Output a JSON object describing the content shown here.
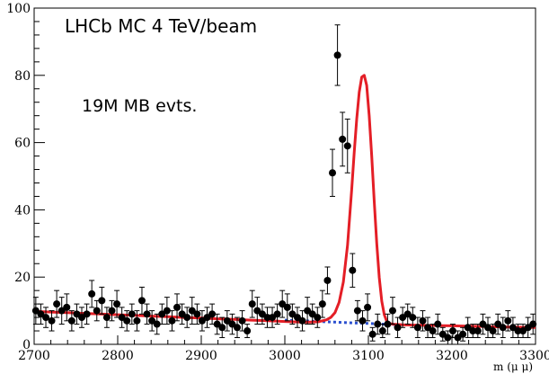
{
  "chart_data": {
    "type": "scatter",
    "xlabel": "m (μ μ)",
    "ylabel": "",
    "xlim": [
      2700,
      3300
    ],
    "ylim": [
      0,
      100
    ],
    "x_ticks": [
      2700,
      2800,
      2900,
      3000,
      3100,
      3200,
      3300
    ],
    "y_ticks": [
      0,
      20,
      40,
      60,
      80,
      100
    ],
    "grid": false,
    "annotations": [
      "LHCb MC 4 TeV/beam",
      "19M MB evts."
    ],
    "colors": {
      "fit": "#e41e26",
      "background": "#2a4fcf",
      "points": "#000000"
    },
    "series": [
      {
        "type": "errorbar",
        "x": [
          2702,
          2708,
          2714,
          2721,
          2727,
          2733,
          2739,
          2745,
          2751,
          2757,
          2763,
          2769,
          2775,
          2781,
          2787,
          2793,
          2799,
          2805,
          2811,
          2817,
          2823,
          2829,
          2835,
          2841,
          2847,
          2853,
          2859,
          2865,
          2871,
          2877,
          2883,
          2889,
          2895,
          2901,
          2907,
          2913,
          2919,
          2925,
          2931,
          2937,
          2943,
          2949,
          2955,
          2961,
          2967,
          2973,
          2979,
          2985,
          2991,
          2997,
          3003,
          3009,
          3015,
          3021,
          3027,
          3033,
          3039,
          3045,
          3051,
          3057,
          3063,
          3069,
          3075,
          3081,
          3087,
          3093,
          3099,
          3105,
          3111,
          3117,
          3123,
          3129,
          3135,
          3141,
          3147,
          3153,
          3159,
          3165,
          3171,
          3177,
          3183,
          3189,
          3195,
          3201,
          3207,
          3213,
          3219,
          3225,
          3231,
          3237,
          3243,
          3249,
          3255,
          3261,
          3267,
          3273,
          3279,
          3285,
          3291,
          3297
        ],
        "y": [
          10,
          9,
          8,
          7,
          12,
          10,
          11,
          7,
          9,
          8,
          9,
          15,
          10,
          13,
          8,
          10,
          12,
          8,
          7,
          9,
          7,
          13,
          9,
          7,
          6,
          9,
          10,
          7,
          11,
          9,
          8,
          10,
          9,
          7,
          8,
          9,
          6,
          5,
          7,
          6,
          5,
          7,
          4,
          12,
          10,
          9,
          8,
          8,
          9,
          12,
          11,
          9,
          8,
          7,
          10,
          9,
          8,
          12,
          19,
          51,
          86,
          61,
          59,
          22,
          10,
          7,
          11,
          3,
          6,
          4,
          6,
          10,
          5,
          8,
          9,
          8,
          5,
          7,
          5,
          4,
          6,
          3,
          2,
          4,
          2,
          3,
          5,
          4,
          4,
          6,
          5,
          4,
          6,
          5,
          7,
          5,
          4,
          4,
          5,
          6
        ],
        "err": [
          4,
          3,
          3,
          3,
          4,
          4,
          4,
          3,
          3,
          3,
          3,
          4,
          3,
          4,
          3,
          3,
          4,
          3,
          3,
          3,
          3,
          4,
          3,
          3,
          3,
          3,
          4,
          3,
          4,
          3,
          3,
          4,
          3,
          3,
          3,
          3,
          3,
          3,
          3,
          3,
          3,
          3,
          2,
          4,
          4,
          3,
          3,
          3,
          3,
          4,
          4,
          3,
          3,
          3,
          4,
          3,
          3,
          4,
          4,
          7,
          9,
          8,
          8,
          5,
          3,
          3,
          4,
          2,
          3,
          2,
          3,
          4,
          3,
          3,
          3,
          3,
          3,
          3,
          3,
          2,
          3,
          2,
          2,
          2,
          2,
          2,
          3,
          2,
          2,
          3,
          3,
          2,
          3,
          3,
          3,
          3,
          2,
          2,
          3,
          3
        ]
      },
      {
        "name": "",
        "type": "line",
        "role": "signal + background fit",
        "x": [
          2700,
          2720,
          2740,
          2760,
          2780,
          2800,
          2820,
          2840,
          2860,
          2880,
          2900,
          2920,
          2940,
          2960,
          2980,
          3000,
          3020,
          3030,
          3040,
          3050,
          3055,
          3060,
          3065,
          3070,
          3075,
          3080,
          3083,
          3086,
          3089,
          3092,
          3095,
          3098,
          3101,
          3104,
          3107,
          3110,
          3113,
          3116,
          3119,
          3122,
          3125,
          3130,
          3135,
          3140,
          3160,
          3180,
          3200,
          3220,
          3240,
          3260,
          3280,
          3300
        ],
        "y": [
          9.8,
          9.6,
          9.4,
          9.2,
          9.0,
          8.8,
          8.6,
          8.4,
          8.2,
          8.0,
          7.8,
          7.6,
          7.4,
          7.2,
          7.0,
          6.8,
          6.6,
          6.6,
          6.7,
          7.3,
          8.0,
          9.4,
          12.5,
          18.5,
          29.5,
          46.0,
          57.0,
          67.0,
          75.0,
          79.5,
          80.0,
          77.0,
          68.0,
          56.0,
          42.5,
          30.0,
          19.8,
          12.8,
          8.8,
          6.8,
          6.2,
          6.0,
          5.9,
          5.8,
          5.7,
          5.6,
          5.5,
          5.4,
          5.3,
          5.2,
          5.1,
          5.0
        ]
      },
      {
        "name": "",
        "type": "line",
        "role": "background",
        "dashed": true,
        "x": [
          3000,
          3020,
          3040,
          3060,
          3080,
          3100,
          3120,
          3140
        ],
        "y": [
          7.2,
          7.0,
          6.8,
          6.6,
          6.4,
          6.2,
          6.0,
          5.8
        ]
      }
    ]
  }
}
